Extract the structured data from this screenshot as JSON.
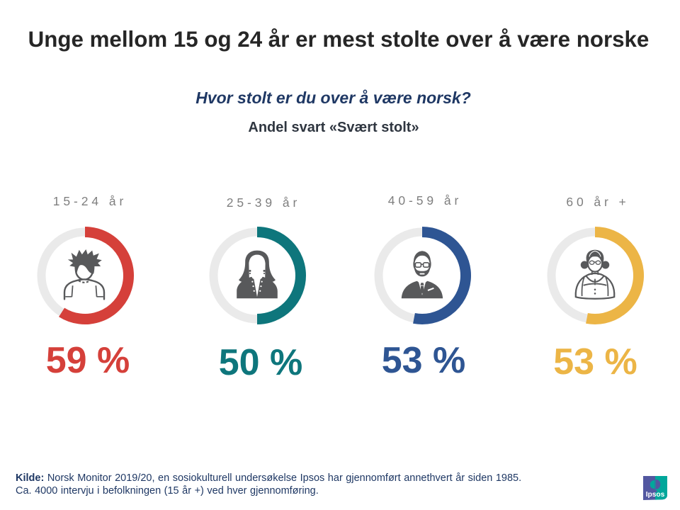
{
  "title": "Unge mellom 15 og 24 år er mest stolte over å være norske",
  "question": "Hvor stolt er du over å være norsk?",
  "measure": "Andel svart «Svært stolt»",
  "chart_data": {
    "type": "donut",
    "title": "Unge mellom 15 og 24 år er mest stolte over å være norske",
    "question": "Hvor stolt er du over å være norsk?",
    "measure": "Andel svart «Svært stolt»",
    "categories": [
      "15-24 år",
      "25-39 år",
      "40-59 år",
      "60 år +"
    ],
    "values": [
      59,
      50,
      53,
      53
    ],
    "unit": "%",
    "value_labels": [
      "59 %",
      "50 %",
      "53 %",
      "53 %"
    ],
    "colors": [
      "#d5403a",
      "#0e767c",
      "#2e5593",
      "#ecb546"
    ],
    "track_color": "#eaeaea",
    "max": 100,
    "icons": [
      "young-man",
      "woman",
      "man-suit",
      "older-woman"
    ]
  },
  "footer": {
    "source_label": "Kilde:",
    "line1": "Norsk Monitor 2019/20, en sosiokulturell undersøkelse Ipsos har gjennomført annethvert år siden 1985.",
    "line2": "Ca. 4000 intervju i befolkningen (15 år +) ved hver gjennomføring."
  },
  "logo": {
    "text": "Ipsos",
    "left_color": "#5257a0",
    "right_color": "#00a79b"
  }
}
